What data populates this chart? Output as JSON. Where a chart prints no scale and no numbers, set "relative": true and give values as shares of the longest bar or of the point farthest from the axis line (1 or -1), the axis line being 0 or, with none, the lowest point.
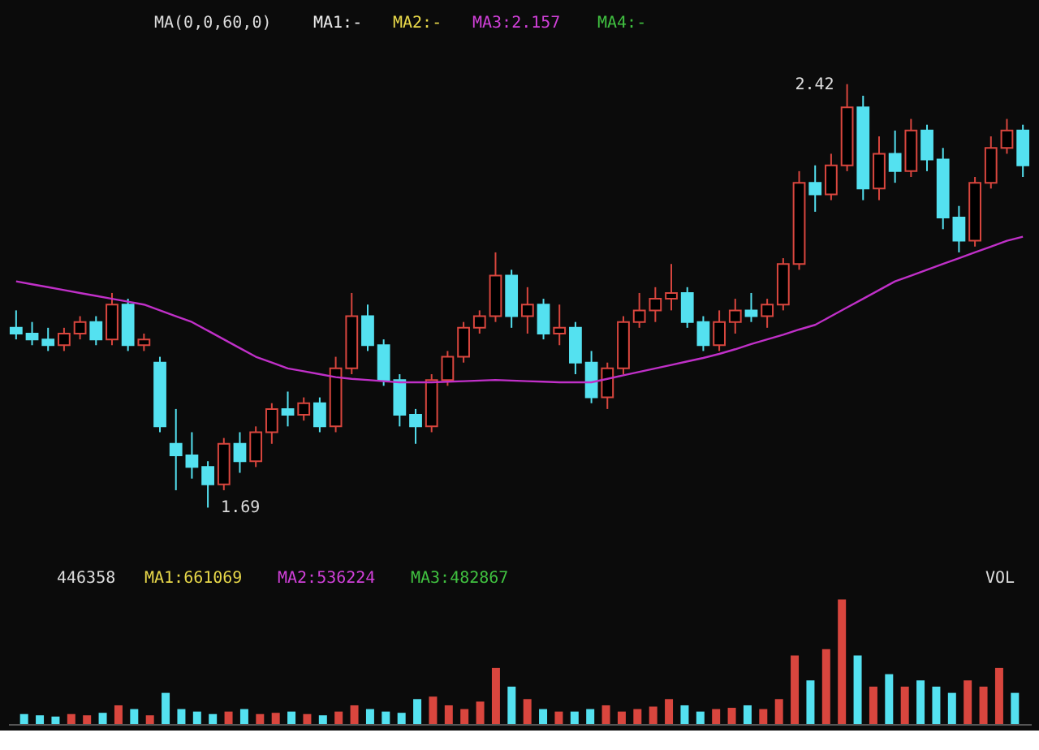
{
  "chart_data": [
    {
      "type": "candlestick",
      "categories": [
        null,
        null,
        null,
        null,
        null,
        null,
        null,
        null,
        null,
        null,
        null,
        null,
        null,
        null,
        null,
        null,
        null,
        null,
        null,
        null,
        null,
        null,
        null,
        null,
        null,
        null,
        null,
        null,
        null,
        null,
        null,
        null,
        null,
        null,
        null,
        null,
        null,
        null,
        null,
        null,
        null,
        null,
        null,
        null,
        null,
        null,
        null,
        null,
        null,
        null,
        null,
        null,
        null,
        null,
        null,
        null,
        null,
        null,
        null,
        null,
        null,
        null,
        null,
        null
      ],
      "ohlc": [
        [
          2.0,
          2.03,
          1.98,
          1.99
        ],
        [
          1.99,
          2.01,
          1.97,
          1.98
        ],
        [
          1.98,
          2.0,
          1.96,
          1.97
        ],
        [
          1.97,
          2.0,
          1.96,
          1.99
        ],
        [
          1.99,
          2.02,
          1.98,
          2.01
        ],
        [
          2.01,
          2.02,
          1.97,
          1.98
        ],
        [
          1.98,
          2.06,
          1.97,
          2.04
        ],
        [
          2.04,
          2.05,
          1.96,
          1.97
        ],
        [
          1.97,
          1.99,
          1.96,
          1.98
        ],
        [
          1.94,
          1.95,
          1.82,
          1.83
        ],
        [
          1.8,
          1.86,
          1.72,
          1.78
        ],
        [
          1.78,
          1.82,
          1.74,
          1.76
        ],
        [
          1.76,
          1.77,
          1.69,
          1.73
        ],
        [
          1.73,
          1.81,
          1.72,
          1.8
        ],
        [
          1.8,
          1.82,
          1.75,
          1.77
        ],
        [
          1.77,
          1.83,
          1.76,
          1.82
        ],
        [
          1.82,
          1.87,
          1.8,
          1.86
        ],
        [
          1.86,
          1.89,
          1.83,
          1.85
        ],
        [
          1.85,
          1.88,
          1.84,
          1.87
        ],
        [
          1.87,
          1.88,
          1.82,
          1.83
        ],
        [
          1.83,
          1.95,
          1.82,
          1.93
        ],
        [
          1.93,
          2.06,
          1.92,
          2.02
        ],
        [
          2.02,
          2.04,
          1.96,
          1.97
        ],
        [
          1.97,
          1.98,
          1.9,
          1.91
        ],
        [
          1.91,
          1.92,
          1.83,
          1.85
        ],
        [
          1.85,
          1.86,
          1.8,
          1.83
        ],
        [
          1.83,
          1.92,
          1.82,
          1.91
        ],
        [
          1.91,
          1.96,
          1.9,
          1.95
        ],
        [
          1.95,
          2.01,
          1.94,
          2.0
        ],
        [
          2.0,
          2.03,
          1.99,
          2.02
        ],
        [
          2.02,
          2.13,
          2.01,
          2.09
        ],
        [
          2.09,
          2.1,
          2.0,
          2.02
        ],
        [
          2.02,
          2.07,
          1.99,
          2.04
        ],
        [
          2.04,
          2.05,
          1.98,
          1.99
        ],
        [
          1.99,
          2.04,
          1.97,
          2.0
        ],
        [
          2.0,
          2.01,
          1.92,
          1.94
        ],
        [
          1.94,
          1.96,
          1.87,
          1.88
        ],
        [
          1.88,
          1.94,
          1.86,
          1.93
        ],
        [
          1.93,
          2.02,
          1.92,
          2.01
        ],
        [
          2.01,
          2.06,
          2.0,
          2.03
        ],
        [
          2.03,
          2.07,
          2.01,
          2.05
        ],
        [
          2.05,
          2.11,
          2.03,
          2.06
        ],
        [
          2.06,
          2.07,
          2.0,
          2.01
        ],
        [
          2.01,
          2.02,
          1.96,
          1.97
        ],
        [
          1.97,
          2.03,
          1.96,
          2.01
        ],
        [
          2.01,
          2.05,
          1.99,
          2.03
        ],
        [
          2.03,
          2.06,
          2.01,
          2.02
        ],
        [
          2.02,
          2.05,
          2.0,
          2.04
        ],
        [
          2.04,
          2.12,
          2.03,
          2.11
        ],
        [
          2.11,
          2.27,
          2.1,
          2.25
        ],
        [
          2.25,
          2.28,
          2.2,
          2.23
        ],
        [
          2.23,
          2.3,
          2.22,
          2.28
        ],
        [
          2.28,
          2.42,
          2.27,
          2.38
        ],
        [
          2.38,
          2.4,
          2.22,
          2.24
        ],
        [
          2.24,
          2.33,
          2.22,
          2.3
        ],
        [
          2.3,
          2.34,
          2.25,
          2.27
        ],
        [
          2.27,
          2.36,
          2.26,
          2.34
        ],
        [
          2.34,
          2.35,
          2.27,
          2.29
        ],
        [
          2.29,
          2.31,
          2.17,
          2.19
        ],
        [
          2.19,
          2.21,
          2.13,
          2.15
        ],
        [
          2.15,
          2.26,
          2.14,
          2.25
        ],
        [
          2.25,
          2.33,
          2.24,
          2.31
        ],
        [
          2.31,
          2.36,
          2.3,
          2.34
        ],
        [
          2.34,
          2.35,
          2.26,
          2.28
        ]
      ],
      "colors": [
        "#54e1f0",
        "#54e1f0",
        "#54e1f0",
        "#d9463e",
        "#d9463e",
        "#54e1f0",
        "#d9463e",
        "#54e1f0",
        "#d9463e",
        "#54e1f0",
        "#54e1f0",
        "#54e1f0",
        "#54e1f0",
        "#d9463e",
        "#54e1f0",
        "#d9463e",
        "#d9463e",
        "#54e1f0",
        "#d9463e",
        "#54e1f0",
        "#d9463e",
        "#d9463e",
        "#54e1f0",
        "#54e1f0",
        "#54e1f0",
        "#54e1f0",
        "#d9463e",
        "#d9463e",
        "#d9463e",
        "#d9463e",
        "#d9463e",
        "#54e1f0",
        "#d9463e",
        "#54e1f0",
        "#d9463e",
        "#54e1f0",
        "#54e1f0",
        "#d9463e",
        "#d9463e",
        "#d9463e",
        "#d9463e",
        "#d9463e",
        "#54e1f0",
        "#54e1f0",
        "#d9463e",
        "#d9463e",
        "#54e1f0",
        "#d9463e",
        "#d9463e",
        "#d9463e",
        "#54e1f0",
        "#d9463e",
        "#d9463e",
        "#54e1f0",
        "#d9463e",
        "#54e1f0",
        "#d9463e",
        "#54e1f0",
        "#54e1f0",
        "#54e1f0",
        "#d9463e",
        "#d9463e",
        "#d9463e",
        "#54e1f0"
      ],
      "series": [
        {
          "type": "line",
          "color": "#c030c8",
          "values": [
            2.08,
            2.075,
            2.07,
            2.065,
            2.06,
            2.055,
            2.05,
            2.045,
            2.04,
            2.03,
            2.02,
            2.01,
            1.995,
            1.98,
            1.965,
            1.95,
            1.94,
            1.93,
            1.925,
            1.92,
            1.915,
            1.912,
            1.91,
            1.908,
            1.906,
            1.906,
            1.906,
            1.907,
            1.908,
            1.909,
            1.91,
            1.909,
            1.908,
            1.907,
            1.906,
            1.906,
            1.906,
            1.912,
            1.918,
            1.924,
            1.93,
            1.936,
            1.942,
            1.948,
            1.955,
            1.963,
            1.972,
            1.98,
            1.988,
            1.997,
            2.005,
            2.02,
            2.035,
            2.05,
            2.065,
            2.08,
            2.09,
            2.1,
            2.11,
            2.12,
            2.13,
            2.14,
            2.15,
            2.157
          ]
        }
      ],
      "annotations": [
        "MA(0,0,60,0)",
        "MA1:-",
        "MA2:-",
        "MA3:2.157",
        "MA4:-",
        "2.42",
        "1.69"
      ]
    },
    {
      "type": "bar",
      "relative": true,
      "categories": [
        null,
        null,
        null,
        null,
        null,
        null,
        null,
        null,
        null,
        null,
        null,
        null,
        null,
        null,
        null,
        null,
        null,
        null,
        null,
        null,
        null,
        null,
        null,
        null,
        null,
        null,
        null,
        null,
        null,
        null,
        null,
        null,
        null,
        null,
        null,
        null,
        null,
        null,
        null,
        null,
        null,
        null,
        null,
        null,
        null,
        null,
        null,
        null,
        null,
        null,
        null,
        null,
        null,
        null,
        null,
        null,
        null,
        null,
        null,
        null,
        null,
        null,
        null,
        null
      ],
      "values": [
        0.08,
        0.07,
        0.06,
        0.08,
        0.07,
        0.09,
        0.15,
        0.12,
        0.07,
        0.25,
        0.12,
        0.1,
        0.08,
        0.1,
        0.12,
        0.08,
        0.09,
        0.1,
        0.08,
        0.07,
        0.1,
        0.15,
        0.12,
        0.1,
        0.09,
        0.2,
        0.22,
        0.15,
        0.12,
        0.18,
        0.45,
        0.3,
        0.2,
        0.12,
        0.1,
        0.1,
        0.12,
        0.15,
        0.1,
        0.12,
        0.14,
        0.2,
        0.15,
        0.1,
        0.12,
        0.13,
        0.15,
        0.12,
        0.2,
        0.55,
        0.35,
        0.6,
        1.0,
        0.55,
        0.3,
        0.4,
        0.3,
        0.35,
        0.3,
        0.25,
        0.35,
        0.3,
        0.45,
        0.25
      ],
      "colors": [
        "#54e1f0",
        "#54e1f0",
        "#54e1f0",
        "#d9463e",
        "#d9463e",
        "#54e1f0",
        "#d9463e",
        "#54e1f0",
        "#d9463e",
        "#54e1f0",
        "#54e1f0",
        "#54e1f0",
        "#54e1f0",
        "#d9463e",
        "#54e1f0",
        "#d9463e",
        "#d9463e",
        "#54e1f0",
        "#d9463e",
        "#54e1f0",
        "#d9463e",
        "#d9463e",
        "#54e1f0",
        "#54e1f0",
        "#54e1f0",
        "#54e1f0",
        "#d9463e",
        "#d9463e",
        "#d9463e",
        "#d9463e",
        "#d9463e",
        "#54e1f0",
        "#d9463e",
        "#54e1f0",
        "#d9463e",
        "#54e1f0",
        "#54e1f0",
        "#d9463e",
        "#d9463e",
        "#d9463e",
        "#d9463e",
        "#d9463e",
        "#54e1f0",
        "#54e1f0",
        "#d9463e",
        "#d9463e",
        "#54e1f0",
        "#d9463e",
        "#d9463e",
        "#d9463e",
        "#54e1f0",
        "#d9463e",
        "#d9463e",
        "#54e1f0",
        "#d9463e",
        "#54e1f0",
        "#d9463e",
        "#54e1f0",
        "#54e1f0",
        "#54e1f0",
        "#d9463e",
        "#d9463e",
        "#d9463e",
        "#54e1f0"
      ],
      "annotations": [
        "446358",
        "MA1:661069",
        "MA2:536224",
        "MA3:482867",
        "VOL"
      ]
    }
  ]
}
